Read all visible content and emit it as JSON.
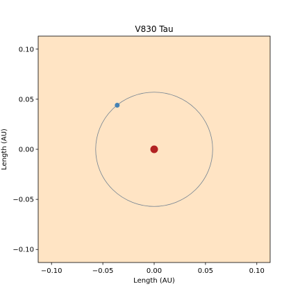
{
  "chart_data": {
    "type": "scatter",
    "title": "V830 Tau",
    "xlabel": "Length (AU)",
    "ylabel": "Length (AU)",
    "xlim": [
      -0.113,
      0.113
    ],
    "ylim": [
      -0.113,
      0.113
    ],
    "xticks": [
      -0.1,
      -0.05,
      0.0,
      0.05,
      0.1
    ],
    "yticks": [
      -0.1,
      -0.05,
      0.0,
      0.05,
      0.1
    ],
    "xtick_labels": [
      "−0.10",
      "−0.05",
      "0.00",
      "0.05",
      "0.10"
    ],
    "ytick_labels": [
      "−0.10",
      "−0.05",
      "0.00",
      "0.05",
      "0.10"
    ],
    "grid": false,
    "background_color": "#ffe4c4",
    "star": {
      "x": 0.0,
      "y": 0.0,
      "color": "#b22222"
    },
    "orbit": {
      "center": [
        0.0,
        0.0
      ],
      "radius": 0.057,
      "color": "#708090"
    },
    "planet": {
      "x": -0.036,
      "y": 0.044,
      "color": "#4682b4"
    }
  }
}
